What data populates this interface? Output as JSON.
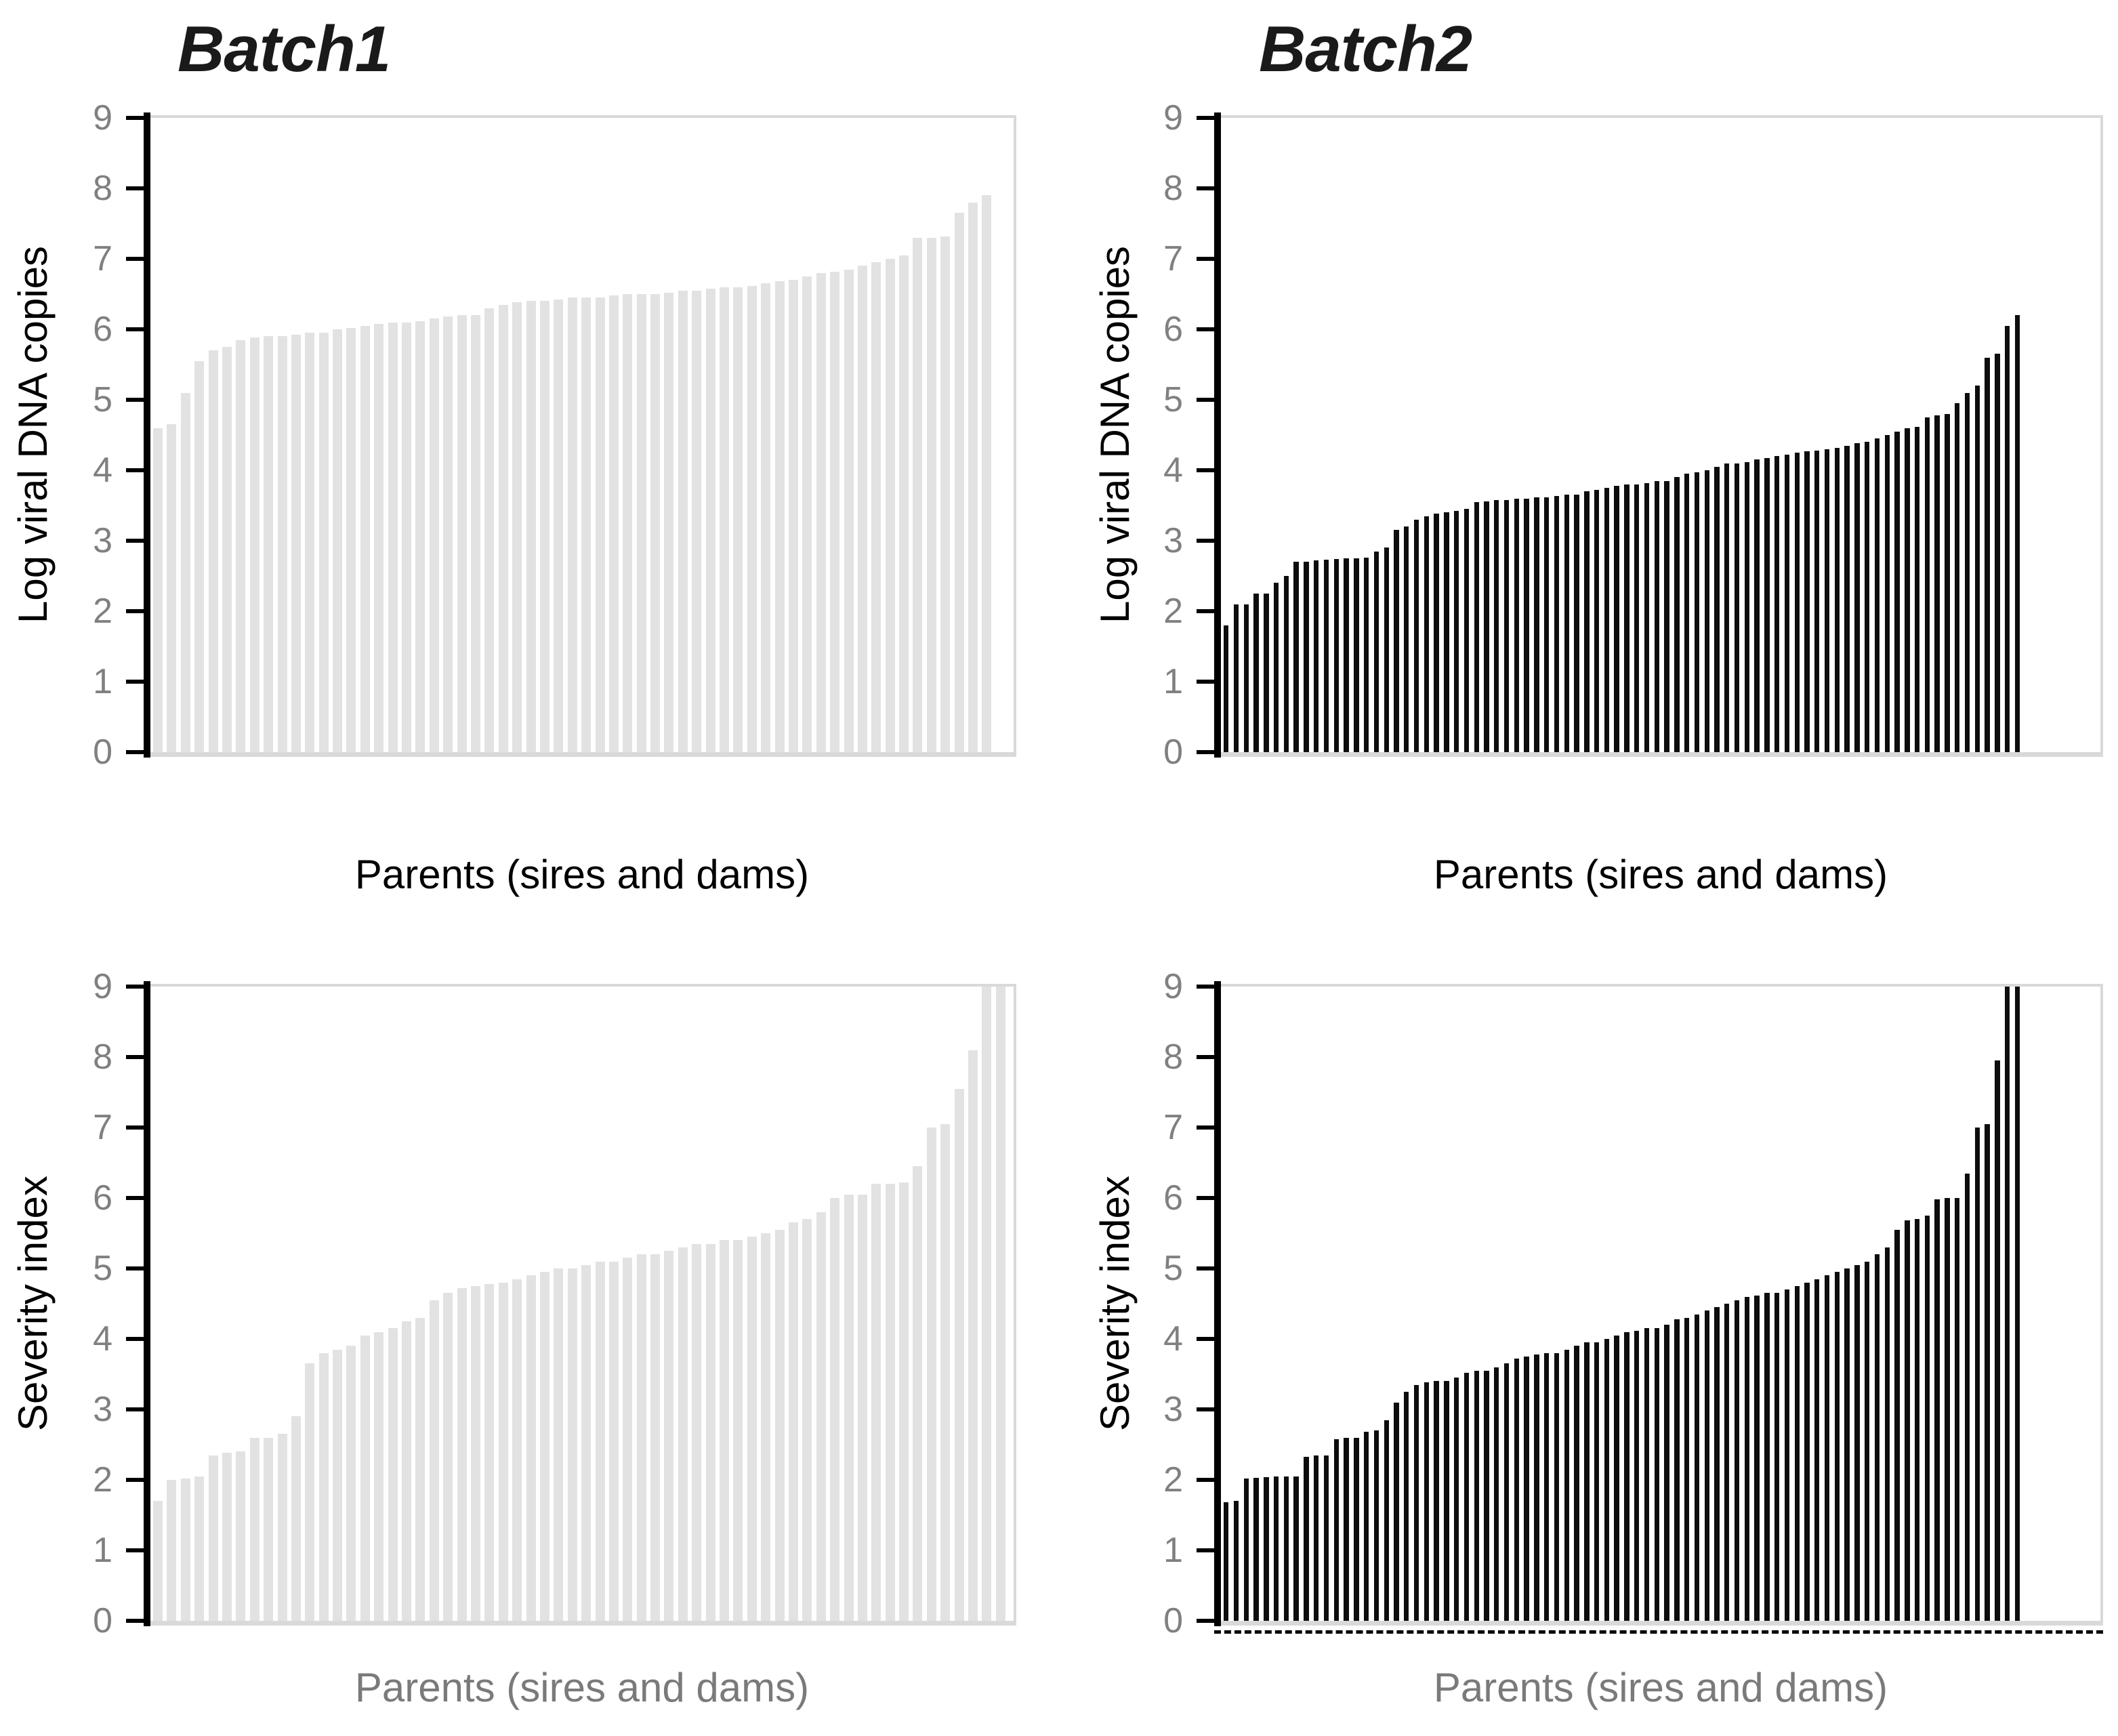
{
  "figure": {
    "background_color": "#FFFFFF",
    "layout": "2x2 grid of sorted bar charts",
    "colors": {
      "batch1_bar": "#E2E2E2",
      "batch2_bar": "#0D0D0D",
      "plot_border": "#D9D9D9",
      "axis_line": "#000000",
      "tick_label": "#808080",
      "xlabel_gray": "#7A7A7A",
      "text_black": "#1A1A1A"
    }
  },
  "chart_data": [
    {
      "type": "bar",
      "title": "Batch1",
      "ylabel": "Log viral DNA copies",
      "xlabel": "Parents (sires and dams)",
      "ylim": [
        0,
        9
      ],
      "yticks": [
        0,
        1,
        2,
        3,
        4,
        5,
        6,
        7,
        8,
        9
      ],
      "grid": false,
      "legend": false,
      "bar_color": "#E2E2E2",
      "xlabel_color": "#000000",
      "tick_label_color": "#808080",
      "axis_color": "#000000",
      "plot_border_color": "#D9D9D9",
      "zero_line": "solid-gray",
      "values": [
        4.6,
        4.65,
        5.1,
        5.55,
        5.7,
        5.75,
        5.85,
        5.88,
        5.9,
        5.9,
        5.92,
        5.95,
        5.95,
        6.0,
        6.02,
        6.05,
        6.08,
        6.1,
        6.1,
        6.12,
        6.15,
        6.18,
        6.2,
        6.2,
        6.3,
        6.35,
        6.38,
        6.4,
        6.4,
        6.42,
        6.45,
        6.45,
        6.45,
        6.48,
        6.5,
        6.5,
        6.5,
        6.52,
        6.55,
        6.55,
        6.58,
        6.6,
        6.6,
        6.62,
        6.65,
        6.68,
        6.7,
        6.75,
        6.8,
        6.82,
        6.85,
        6.9,
        6.95,
        7.0,
        7.05,
        7.3,
        7.3,
        7.32,
        7.65,
        7.8,
        7.9
      ]
    },
    {
      "type": "bar",
      "title": "Batch2",
      "ylabel": "Log viral DNA copies",
      "xlabel": "Parents (sires and dams)",
      "ylim": [
        0,
        9
      ],
      "yticks": [
        0,
        1,
        2,
        3,
        4,
        5,
        6,
        7,
        8,
        9
      ],
      "grid": false,
      "legend": false,
      "bar_color": "#0D0D0D",
      "xlabel_color": "#000000",
      "tick_label_color": "#808080",
      "axis_color": "#000000",
      "plot_border_color": "#D9D9D9",
      "zero_line": "solid-gray",
      "values": [
        1.8,
        2.1,
        2.1,
        2.25,
        2.25,
        2.4,
        2.5,
        2.7,
        2.7,
        2.72,
        2.73,
        2.74,
        2.75,
        2.75,
        2.76,
        2.85,
        2.9,
        3.15,
        3.2,
        3.3,
        3.35,
        3.38,
        3.4,
        3.42,
        3.45,
        3.55,
        3.56,
        3.58,
        3.58,
        3.6,
        3.6,
        3.62,
        3.62,
        3.63,
        3.65,
        3.65,
        3.7,
        3.72,
        3.75,
        3.78,
        3.8,
        3.8,
        3.82,
        3.85,
        3.85,
        3.9,
        3.95,
        3.97,
        4.0,
        4.05,
        4.1,
        4.1,
        4.12,
        4.15,
        4.17,
        4.2,
        4.22,
        4.25,
        4.27,
        4.28,
        4.3,
        4.32,
        4.35,
        4.38,
        4.4,
        4.45,
        4.5,
        4.55,
        4.6,
        4.62,
        4.75,
        4.78,
        4.8,
        4.95,
        5.1,
        5.2,
        5.6,
        5.65,
        6.05,
        6.2
      ]
    },
    {
      "type": "bar",
      "title": null,
      "ylabel": "Severity index",
      "xlabel": "Parents (sires and dams)",
      "ylim": [
        0,
        9
      ],
      "yticks": [
        0,
        1,
        2,
        3,
        4,
        5,
        6,
        7,
        8,
        9
      ],
      "grid": false,
      "legend": false,
      "bar_color": "#E2E2E2",
      "xlabel_color": "#7A7A7A",
      "tick_label_color": "#808080",
      "axis_color": "#000000",
      "plot_border_color": "#D9D9D9",
      "zero_line": "solid-gray",
      "values": [
        1.7,
        2.0,
        2.02,
        2.05,
        2.35,
        2.38,
        2.4,
        2.6,
        2.6,
        2.65,
        2.9,
        3.65,
        3.8,
        3.85,
        3.9,
        4.05,
        4.1,
        4.15,
        4.25,
        4.3,
        4.55,
        4.65,
        4.72,
        4.75,
        4.78,
        4.8,
        4.85,
        4.9,
        4.95,
        5.0,
        5.0,
        5.05,
        5.1,
        5.1,
        5.15,
        5.2,
        5.2,
        5.25,
        5.3,
        5.35,
        5.35,
        5.4,
        5.4,
        5.45,
        5.5,
        5.55,
        5.65,
        5.7,
        5.8,
        6.0,
        6.05,
        6.05,
        6.2,
        6.2,
        6.22,
        6.45,
        7.0,
        7.05,
        7.55,
        8.1,
        9.0,
        9.0
      ]
    },
    {
      "type": "bar",
      "title": null,
      "ylabel": "Severity index",
      "xlabel": "Parents (sires and dams)",
      "ylim": [
        0,
        9
      ],
      "yticks": [
        0,
        1,
        2,
        3,
        4,
        5,
        6,
        7,
        8,
        9
      ],
      "grid": false,
      "legend": false,
      "bar_color": "#0D0D0D",
      "xlabel_color": "#7A7A7A",
      "tick_label_color": "#808080",
      "axis_color": "#000000",
      "plot_border_color": "#D9D9D9",
      "zero_line": "dashed-black",
      "values": [
        1.68,
        1.7,
        2.02,
        2.03,
        2.04,
        2.05,
        2.05,
        2.05,
        2.33,
        2.35,
        2.35,
        2.58,
        2.6,
        2.6,
        2.68,
        2.7,
        2.85,
        3.1,
        3.25,
        3.35,
        3.38,
        3.4,
        3.4,
        3.45,
        3.52,
        3.55,
        3.55,
        3.6,
        3.65,
        3.72,
        3.75,
        3.78,
        3.8,
        3.8,
        3.85,
        3.9,
        3.95,
        3.95,
        4.0,
        4.05,
        4.1,
        4.12,
        4.15,
        4.15,
        4.2,
        4.28,
        4.3,
        4.35,
        4.4,
        4.45,
        4.5,
        4.55,
        4.6,
        4.62,
        4.65,
        4.65,
        4.7,
        4.75,
        4.8,
        4.85,
        4.9,
        4.95,
        5.0,
        5.05,
        5.1,
        5.2,
        5.3,
        5.55,
        5.68,
        5.7,
        5.75,
        5.98,
        6.0,
        6.0,
        6.35,
        7.0,
        7.05,
        7.95,
        9.0,
        9.0
      ]
    }
  ]
}
